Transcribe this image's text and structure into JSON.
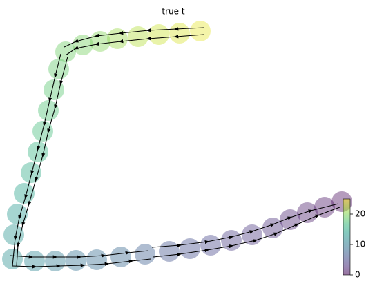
{
  "chart_data": {
    "type": "scatter",
    "title": "true t",
    "colormap": "viridis",
    "x": [
      280,
      250,
      220,
      190,
      160,
      135,
      110,
      85,
      75,
      68,
      60,
      52,
      45,
      35,
      25,
      15,
      10,
      8,
      40,
      70,
      100,
      130,
      165,
      200,
      235,
      265,
      295,
      325,
      355,
      385,
      410,
      435,
      460,
      485
    ],
    "y": [
      350,
      347,
      345,
      342,
      339,
      335,
      330,
      320,
      295,
      265,
      235,
      205,
      175,
      145,
      115,
      85,
      55,
      20,
      17,
      17,
      18,
      19,
      23,
      27,
      31,
      35,
      40,
      47,
      55,
      65,
      77,
      87,
      95,
      103
    ],
    "values": [
      24,
      23.5,
      23,
      22,
      21,
      20,
      19.5,
      19,
      18.5,
      18,
      17.5,
      17,
      16,
      15,
      14,
      13,
      12.5,
      12,
      11,
      10,
      9,
      8.5,
      8,
      7,
      6,
      5.5,
      5,
      4,
      3.5,
      3,
      2,
      1.5,
      1,
      0.5
    ],
    "xlim": [
      0,
      500
    ],
    "ylim": [
      0,
      380
    ],
    "clim": [
      0,
      25
    ],
    "cticks": [
      0,
      10,
      20
    ]
  }
}
